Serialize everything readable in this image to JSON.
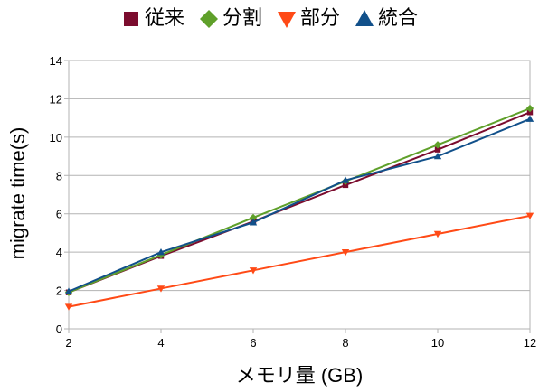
{
  "chart_data": {
    "type": "line",
    "xlabel": "メモリ量 (GB)",
    "ylabel": "migrate time(s)",
    "x": [
      2,
      4,
      6,
      8,
      10,
      12
    ],
    "xlim": [
      2,
      12
    ],
    "ylim": [
      0,
      14
    ],
    "x_ticks": [
      "2",
      "4",
      "6",
      "8",
      "10",
      "12"
    ],
    "y_ticks": [
      "0",
      "2",
      "4",
      "6",
      "8",
      "10",
      "12",
      "14"
    ],
    "grid": "horizontal",
    "legend_position": "top",
    "series": [
      {
        "name": "従来",
        "color": "#7b0c2e",
        "marker": "square",
        "values": [
          1.9,
          3.8,
          5.6,
          7.5,
          9.35,
          11.3
        ]
      },
      {
        "name": "分割",
        "color": "#5fa02a",
        "marker": "diamond",
        "values": [
          1.9,
          3.85,
          5.8,
          7.7,
          9.6,
          11.5
        ]
      },
      {
        "name": "部分",
        "color": "#ff4a16",
        "marker": "triangle-down",
        "values": [
          1.15,
          2.1,
          3.05,
          4.0,
          4.95,
          5.9
        ]
      },
      {
        "name": "統合",
        "color": "#11508a",
        "marker": "triangle-up",
        "values": [
          1.95,
          4.0,
          5.55,
          7.75,
          9.0,
          10.95
        ]
      }
    ]
  }
}
